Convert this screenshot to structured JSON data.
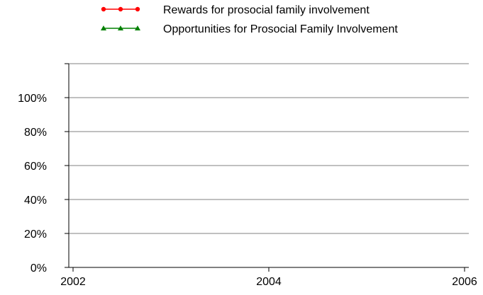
{
  "chart_data": {
    "type": "line",
    "title": "",
    "xlabel": "",
    "ylabel": "",
    "x_ticks": [
      "2002",
      "2004",
      "2006"
    ],
    "x_range": [
      2002,
      2006
    ],
    "y_ticks": [
      "0%",
      "20%",
      "40%",
      "60%",
      "80%",
      "100%"
    ],
    "y_range": [
      0,
      120
    ],
    "grid": "horizontal",
    "legend_position": "top",
    "series": [
      {
        "name": "Rewards for prosocial family involvement",
        "color": "#ff0000",
        "marker": "circle",
        "values": []
      },
      {
        "name": "Opportunities for Prosocial Family Involvement",
        "color": "#008000",
        "marker": "triangle",
        "values": []
      }
    ]
  }
}
